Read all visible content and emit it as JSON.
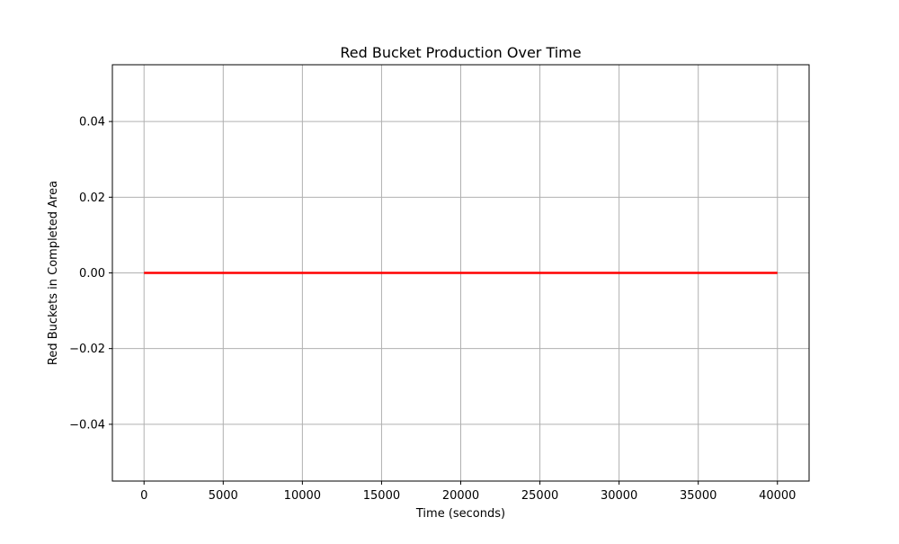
{
  "chart_data": {
    "type": "line",
    "title": "Red Bucket Production Over Time",
    "xlabel": "Time (seconds)",
    "ylabel": "Red Buckets in Completed Area",
    "xlim": [
      -2000,
      42000
    ],
    "ylim": [
      -0.055,
      0.055
    ],
    "xticks": [
      0,
      5000,
      10000,
      15000,
      20000,
      25000,
      30000,
      35000,
      40000
    ],
    "xtick_labels": [
      "0",
      "5000",
      "10000",
      "15000",
      "20000",
      "25000",
      "30000",
      "35000",
      "40000"
    ],
    "yticks": [
      -0.04,
      -0.02,
      0.0,
      0.02,
      0.04
    ],
    "ytick_labels": [
      "−0.04",
      "−0.02",
      "0.00",
      "0.02",
      "0.04"
    ],
    "grid": true,
    "series": [
      {
        "color": "#ff0000",
        "x": [
          0,
          40000
        ],
        "y": [
          0,
          0
        ]
      }
    ]
  },
  "colors": {
    "grid": "#b0b0b0",
    "axes": "#000000",
    "background": "#ffffff"
  }
}
